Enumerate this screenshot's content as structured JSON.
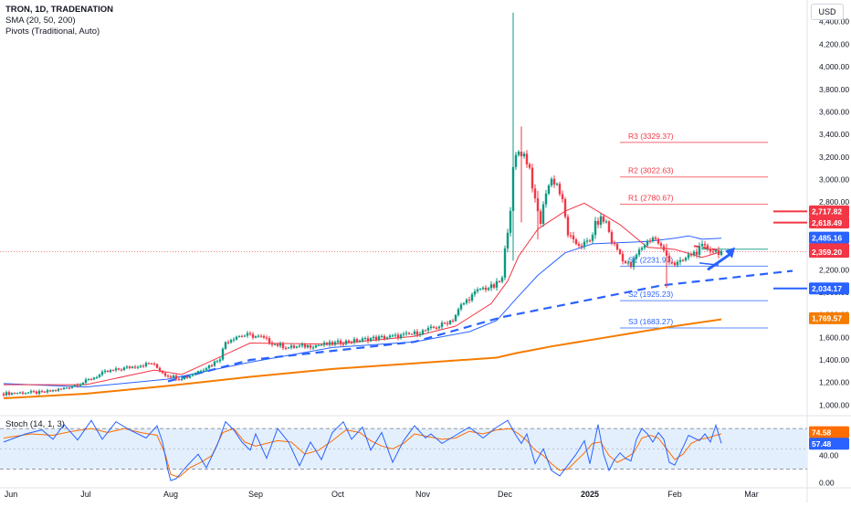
{
  "header": {
    "title": "TRON, 1D, TRADENATION",
    "sma_label": "SMA (20, 50, 200)",
    "pivots_label": "Pivots (Traditional, Auto)",
    "currency": "USD",
    "stoch_label": "Stoch (14, 1, 3)"
  },
  "colors": {
    "up": "#089981",
    "down": "#f23645",
    "sma20": "#f23645",
    "sma50": "#2962ff",
    "sma200": "#f57c00",
    "pivot_r": "#f23645",
    "pivot_s": "#2962ff",
    "stoch_k": "#2962ff",
    "stoch_d": "#ff6d00",
    "trend": "#2962ff",
    "stoch_band": "#e3effd"
  },
  "chart_data": [
    {
      "type": "candlestick",
      "ylim": [
        930,
        4560
      ],
      "y_ticks": [
        "1,000.00",
        "1,200.00",
        "1,400.00",
        "1,600.00",
        "1,800.00",
        "2,000.00",
        "2,200.00",
        "2,400.00",
        "2,600.00",
        "2,800.00",
        "3,000.00",
        "3,200.00",
        "3,400.00",
        "3,600.00",
        "3,800.00",
        "4,000.00",
        "4,200.00",
        "4,400.00"
      ],
      "y_tick_values": [
        1000,
        1200,
        1400,
        1600,
        1800,
        2000,
        2200,
        2400,
        2600,
        2800,
        3000,
        3200,
        3400,
        3600,
        3800,
        4000,
        4200,
        4400
      ],
      "x_labels": [
        "Jun",
        "Jul",
        "Aug",
        "Sep",
        "Oct",
        "Nov",
        "Dec",
        "2025",
        "Feb",
        "Mar"
      ],
      "x_label_days": [
        0,
        30,
        61,
        92,
        122,
        153,
        183,
        214,
        245,
        273
      ],
      "last_day": 262,
      "anchors": [
        [
          0,
          1100
        ],
        [
          8,
          1110
        ],
        [
          15,
          1110
        ],
        [
          22,
          1140
        ],
        [
          30,
          1200
        ],
        [
          38,
          1290
        ],
        [
          44,
          1320
        ],
        [
          50,
          1350
        ],
        [
          55,
          1370
        ],
        [
          60,
          1270
        ],
        [
          65,
          1240
        ],
        [
          68,
          1250
        ],
        [
          72,
          1300
        ],
        [
          77,
          1360
        ],
        [
          80,
          1420
        ],
        [
          82,
          1560
        ],
        [
          86,
          1610
        ],
        [
          90,
          1620
        ],
        [
          95,
          1600
        ],
        [
          100,
          1540
        ],
        [
          105,
          1510
        ],
        [
          110,
          1520
        ],
        [
          115,
          1530
        ],
        [
          120,
          1540
        ],
        [
          125,
          1560
        ],
        [
          130,
          1570
        ],
        [
          135,
          1590
        ],
        [
          140,
          1600
        ],
        [
          145,
          1610
        ],
        [
          150,
          1630
        ],
        [
          155,
          1660
        ],
        [
          160,
          1700
        ],
        [
          165,
          1760
        ],
        [
          168,
          1880
        ],
        [
          171,
          1950
        ],
        [
          175,
          2030
        ],
        [
          180,
          2050
        ],
        [
          183,
          2120
        ],
        [
          184,
          2370
        ],
        [
          186,
          2750
        ],
        [
          187,
          3080
        ],
        [
          188,
          3200
        ],
        [
          189,
          3250
        ],
        [
          191,
          3220
        ],
        [
          193,
          3100
        ],
        [
          195,
          2800
        ],
        [
          197,
          2620
        ],
        [
          199,
          2900
        ],
        [
          201,
          3000
        ],
        [
          203,
          2960
        ],
        [
          205,
          2800
        ],
        [
          207,
          2520
        ],
        [
          209,
          2440
        ],
        [
          212,
          2420
        ],
        [
          215,
          2450
        ],
        [
          217,
          2600
        ],
        [
          219,
          2650
        ],
        [
          221,
          2620
        ],
        [
          223,
          2450
        ],
        [
          225,
          2380
        ],
        [
          228,
          2260
        ],
        [
          230,
          2230
        ],
        [
          232,
          2330
        ],
        [
          234,
          2400
        ],
        [
          236,
          2450
        ],
        [
          238,
          2490
        ],
        [
          240,
          2440
        ],
        [
          242,
          2360
        ],
        [
          244,
          2290
        ],
        [
          246,
          2250
        ],
        [
          248,
          2260
        ],
        [
          250,
          2300
        ],
        [
          252,
          2340
        ],
        [
          254,
          2360
        ],
        [
          256,
          2400
        ],
        [
          258,
          2390
        ],
        [
          260,
          2370
        ],
        [
          262,
          2360
        ]
      ],
      "spikes": [
        [
          186,
          4480,
          2280
        ],
        [
          189,
          3470,
          2620
        ],
        [
          195,
          2900,
          2470
        ],
        [
          242,
          2430,
          2040
        ]
      ],
      "sma20": [
        [
          0,
          1180
        ],
        [
          30,
          1180
        ],
        [
          55,
          1310
        ],
        [
          65,
          1270
        ],
        [
          90,
          1550
        ],
        [
          120,
          1540
        ],
        [
          150,
          1610
        ],
        [
          165,
          1700
        ],
        [
          178,
          1900
        ],
        [
          184,
          2100
        ],
        [
          188,
          2320
        ],
        [
          195,
          2560
        ],
        [
          205,
          2720
        ],
        [
          212,
          2790
        ],
        [
          225,
          2600
        ],
        [
          235,
          2400
        ],
        [
          245,
          2380
        ],
        [
          255,
          2310
        ],
        [
          262,
          2360
        ]
      ],
      "sma50": [
        [
          0,
          1190
        ],
        [
          30,
          1160
        ],
        [
          60,
          1230
        ],
        [
          90,
          1380
        ],
        [
          120,
          1510
        ],
        [
          150,
          1560
        ],
        [
          170,
          1650
        ],
        [
          180,
          1750
        ],
        [
          187,
          1940
        ],
        [
          195,
          2150
        ],
        [
          205,
          2350
        ],
        [
          215,
          2430
        ],
        [
          225,
          2440
        ],
        [
          235,
          2450
        ],
        [
          245,
          2480
        ],
        [
          250,
          2500
        ],
        [
          255,
          2470
        ],
        [
          262,
          2480
        ]
      ],
      "sma200": [
        [
          0,
          1060
        ],
        [
          30,
          1100
        ],
        [
          60,
          1170
        ],
        [
          90,
          1250
        ],
        [
          120,
          1320
        ],
        [
          150,
          1370
        ],
        [
          180,
          1420
        ],
        [
          187,
          1460
        ],
        [
          200,
          1520
        ],
        [
          215,
          1580
        ],
        [
          230,
          1640
        ],
        [
          245,
          1700
        ],
        [
          262,
          1760
        ]
      ],
      "trendline": [
        [
          60,
          1210
        ],
        [
          90,
          1400
        ],
        [
          150,
          1560
        ],
        [
          182,
          1780
        ],
        [
          240,
          2060
        ],
        [
          288,
          2190
        ]
      ],
      "resistance_trend": [
        [
          252,
          2410
        ],
        [
          262,
          2370
        ]
      ],
      "support_trend": [
        [
          254,
          2260
        ],
        [
          261,
          2240
        ]
      ],
      "pivots": [
        {
          "label": "R3 (3329.37)",
          "value": 3329.37,
          "kind": "r"
        },
        {
          "label": "R2 (3022.63)",
          "value": 3022.63,
          "kind": "r"
        },
        {
          "label": "R1 (2780.67)",
          "value": 2780.67,
          "kind": "r"
        },
        {
          "label": "S1 (2231.97)",
          "value": 2231.97,
          "kind": "s"
        },
        {
          "label": "S2 (1925.23)",
          "value": 1925.23,
          "kind": "s"
        },
        {
          "label": "S3 (1683.27)",
          "value": 1683.27,
          "kind": "s"
        }
      ],
      "red_levels": [
        2717.82,
        2618.49
      ],
      "blue_level": 2034.17,
      "green_level": 2381.7,
      "price_badges": [
        {
          "text": "2,717.82",
          "value": 2717.82,
          "color": "#f23645"
        },
        {
          "text": "2,618.49",
          "value": 2618.49,
          "color": "#f23645"
        },
        {
          "text": "2,485.16",
          "value": 2485.16,
          "color": "#2962ff"
        },
        {
          "text": "2,381.70",
          "value": 2381.7,
          "color": "#f23645"
        },
        {
          "text": "2,359.20",
          "value": 2359.2,
          "color": "#f23645"
        },
        {
          "text": "2,034.17",
          "value": 2034.17,
          "color": "#2962ff"
        },
        {
          "text": "1,769.57",
          "value": 1769.57,
          "color": "#f57c00"
        }
      ]
    },
    {
      "type": "line",
      "title": "Stoch (14, 1, 3)",
      "ylim": [
        -5,
        95
      ],
      "y_ticks": [
        "40.00",
        "0.00"
      ],
      "y_tick_values": [
        40,
        0
      ],
      "bands": [
        80,
        20
      ],
      "middle": 50,
      "k": [
        [
          0,
          60
        ],
        [
          8,
          72
        ],
        [
          14,
          78
        ],
        [
          18,
          64
        ],
        [
          22,
          86
        ],
        [
          27,
          63
        ],
        [
          32,
          92
        ],
        [
          36,
          64
        ],
        [
          41,
          90
        ],
        [
          46,
          78
        ],
        [
          52,
          66
        ],
        [
          56,
          84
        ],
        [
          58,
          60
        ],
        [
          60,
          18
        ],
        [
          61,
          3
        ],
        [
          63,
          6
        ],
        [
          67,
          25
        ],
        [
          71,
          42
        ],
        [
          74,
          22
        ],
        [
          78,
          56
        ],
        [
          81,
          90
        ],
        [
          84,
          78
        ],
        [
          87,
          60
        ],
        [
          90,
          48
        ],
        [
          92,
          72
        ],
        [
          96,
          36
        ],
        [
          100,
          80
        ],
        [
          104,
          60
        ],
        [
          108,
          25
        ],
        [
          112,
          60
        ],
        [
          116,
          34
        ],
        [
          120,
          74
        ],
        [
          124,
          90
        ],
        [
          127,
          64
        ],
        [
          131,
          82
        ],
        [
          134,
          48
        ],
        [
          138,
          74
        ],
        [
          142,
          30
        ],
        [
          146,
          62
        ],
        [
          150,
          84
        ],
        [
          154,
          66
        ],
        [
          156,
          72
        ],
        [
          160,
          58
        ],
        [
          165,
          70
        ],
        [
          170,
          82
        ],
        [
          175,
          66
        ],
        [
          180,
          82
        ],
        [
          184,
          92
        ],
        [
          187,
          70
        ],
        [
          189,
          58
        ],
        [
          191,
          72
        ],
        [
          194,
          28
        ],
        [
          197,
          50
        ],
        [
          200,
          18
        ],
        [
          203,
          10
        ],
        [
          206,
          26
        ],
        [
          209,
          42
        ],
        [
          212,
          62
        ],
        [
          214,
          28
        ],
        [
          217,
          86
        ],
        [
          219,
          42
        ],
        [
          221,
          18
        ],
        [
          223,
          34
        ],
        [
          225,
          44
        ],
        [
          227,
          36
        ],
        [
          229,
          32
        ],
        [
          231,
          64
        ],
        [
          233,
          80
        ],
        [
          235,
          72
        ],
        [
          237,
          60
        ],
        [
          239,
          74
        ],
        [
          241,
          64
        ],
        [
          243,
          30
        ],
        [
          245,
          26
        ],
        [
          248,
          52
        ],
        [
          250,
          70
        ],
        [
          252,
          66
        ],
        [
          254,
          62
        ],
        [
          256,
          72
        ],
        [
          258,
          60
        ],
        [
          260,
          85
        ],
        [
          262,
          58
        ]
      ],
      "d": [
        [
          0,
          66
        ],
        [
          10,
          72
        ],
        [
          18,
          70
        ],
        [
          25,
          76
        ],
        [
          32,
          80
        ],
        [
          38,
          74
        ],
        [
          44,
          80
        ],
        [
          50,
          74
        ],
        [
          56,
          70
        ],
        [
          59,
          42
        ],
        [
          61,
          12
        ],
        [
          64,
          8
        ],
        [
          68,
          22
        ],
        [
          72,
          30
        ],
        [
          76,
          40
        ],
        [
          80,
          74
        ],
        [
          84,
          80
        ],
        [
          88,
          60
        ],
        [
          92,
          54
        ],
        [
          96,
          58
        ],
        [
          100,
          62
        ],
        [
          105,
          60
        ],
        [
          110,
          42
        ],
        [
          115,
          48
        ],
        [
          120,
          62
        ],
        [
          125,
          78
        ],
        [
          130,
          74
        ],
        [
          134,
          62
        ],
        [
          138,
          54
        ],
        [
          142,
          50
        ],
        [
          146,
          58
        ],
        [
          150,
          72
        ],
        [
          155,
          68
        ],
        [
          160,
          64
        ],
        [
          165,
          66
        ],
        [
          170,
          76
        ],
        [
          175,
          72
        ],
        [
          180,
          78
        ],
        [
          185,
          80
        ],
        [
          188,
          72
        ],
        [
          191,
          62
        ],
        [
          194,
          48
        ],
        [
          197,
          40
        ],
        [
          200,
          28
        ],
        [
          203,
          18
        ],
        [
          206,
          20
        ],
        [
          209,
          32
        ],
        [
          212,
          44
        ],
        [
          215,
          58
        ],
        [
          218,
          60
        ],
        [
          221,
          40
        ],
        [
          224,
          30
        ],
        [
          227,
          36
        ],
        [
          230,
          44
        ],
        [
          233,
          66
        ],
        [
          236,
          70
        ],
        [
          239,
          66
        ],
        [
          242,
          50
        ],
        [
          245,
          34
        ],
        [
          248,
          42
        ],
        [
          251,
          58
        ],
        [
          254,
          64
        ],
        [
          257,
          66
        ],
        [
          260,
          70
        ],
        [
          262,
          72
        ]
      ],
      "badges": [
        {
          "text": "74.58",
          "value": 74.58,
          "color": "#ff6d00"
        },
        {
          "text": "57.48",
          "value": 57.48,
          "color": "#2962ff"
        }
      ]
    }
  ]
}
